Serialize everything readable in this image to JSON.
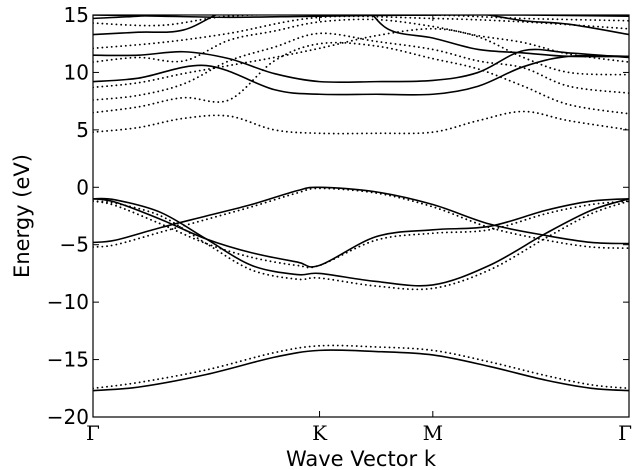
{
  "chart_data": {
    "type": "line",
    "xlabel": "Wave Vector k",
    "ylabel": "Energy (eV)",
    "ylim": [
      -20,
      15
    ],
    "yticks": [
      -20,
      -15,
      -10,
      -5,
      0,
      5,
      10,
      15
    ],
    "x_ticks": [
      {
        "label": "Γ",
        "x": 0
      },
      {
        "label": "K",
        "x": 1
      },
      {
        "label": "M",
        "x": 1.5
      },
      {
        "label": "Γ",
        "x": 2.366
      }
    ],
    "grid": false,
    "series": [
      {
        "style": "solid",
        "x": [
          0,
          0.2,
          0.5,
          0.8,
          1.0,
          1.25,
          1.5,
          1.75,
          2.0,
          2.2,
          2.366
        ],
        "y": [
          -17.7,
          -17.4,
          -16.3,
          -14.8,
          -14.2,
          -14.3,
          -14.6,
          -15.6,
          -16.8,
          -17.5,
          -17.7
        ]
      },
      {
        "style": "dotted",
        "x": [
          0,
          0.2,
          0.5,
          0.8,
          1.0,
          1.25,
          1.5,
          1.75,
          2.0,
          2.2,
          2.366
        ],
        "y": [
          -17.5,
          -17.0,
          -15.9,
          -14.4,
          -13.8,
          -13.9,
          -14.2,
          -15.2,
          -16.4,
          -17.2,
          -17.5
        ]
      },
      {
        "style": "solid",
        "x": [
          0,
          0.1,
          0.3,
          0.5,
          0.7,
          0.9,
          1.0,
          1.25,
          1.5,
          1.75,
          2.0,
          2.2,
          2.366
        ],
        "y": [
          -1.0,
          -1.1,
          -2.2,
          -4.5,
          -6.8,
          -7.6,
          -7.5,
          -8.2,
          -8.5,
          -6.8,
          -4.0,
          -2.0,
          -1.0
        ]
      },
      {
        "style": "solid",
        "x": [
          0,
          0.1,
          0.3,
          0.5,
          0.7,
          0.9,
          1.0,
          1.25,
          1.5,
          1.75,
          2.0,
          2.2,
          2.366
        ],
        "y": [
          -1.0,
          -1.3,
          -2.8,
          -4.5,
          -5.7,
          -6.5,
          -6.8,
          -4.3,
          -3.7,
          -3.4,
          -2.0,
          -1.2,
          -1.0
        ]
      },
      {
        "style": "solid",
        "x": [
          0,
          0.1,
          0.3,
          0.5,
          0.7,
          0.9,
          1.0,
          1.25,
          1.5,
          1.75,
          2.0,
          2.2,
          2.366
        ],
        "y": [
          -4.8,
          -4.6,
          -3.5,
          -2.5,
          -1.5,
          -0.3,
          0.0,
          -0.4,
          -1.5,
          -3.2,
          -4.2,
          -4.8,
          -4.9
        ]
      },
      {
        "style": "dotted",
        "x": [
          0,
          0.1,
          0.3,
          0.5,
          0.7,
          0.9,
          1.0,
          1.25,
          1.5,
          1.75,
          2.0,
          2.2,
          2.366
        ],
        "y": [
          -1.2,
          -1.4,
          -2.5,
          -4.9,
          -7.2,
          -8.0,
          -7.9,
          -8.6,
          -8.8,
          -7.2,
          -4.4,
          -2.3,
          -1.2
        ]
      },
      {
        "style": "dotted",
        "x": [
          0,
          0.1,
          0.3,
          0.5,
          0.7,
          0.9,
          1.0,
          1.25,
          1.5,
          1.75,
          2.0,
          2.2,
          2.366
        ],
        "y": [
          -1.2,
          -1.6,
          -3.2,
          -4.9,
          -6.1,
          -6.8,
          -6.8,
          -4.6,
          -4.0,
          -3.7,
          -2.3,
          -1.5,
          -1.2
        ]
      },
      {
        "style": "dotted",
        "x": [
          0,
          0.1,
          0.3,
          0.5,
          0.7,
          0.9,
          1.0,
          1.25,
          1.5,
          1.75,
          2.0,
          2.2,
          2.366
        ],
        "y": [
          -5.2,
          -5.0,
          -3.9,
          -2.8,
          -1.7,
          -0.5,
          -0.1,
          -0.5,
          -1.7,
          -3.5,
          -4.6,
          -5.2,
          -5.3
        ]
      },
      {
        "style": "solid",
        "x": [
          0,
          0.2,
          0.5,
          0.8,
          1.0,
          1.25,
          1.5,
          1.7,
          1.9,
          2.1,
          2.366
        ],
        "y": [
          9.2,
          9.5,
          10.6,
          8.5,
          8.1,
          8.1,
          8.1,
          8.8,
          10.5,
          11.4,
          11.4
        ]
      },
      {
        "style": "solid",
        "x": [
          0,
          0.2,
          0.4,
          0.6,
          0.8,
          1.0,
          1.25,
          1.5,
          1.7,
          1.9,
          2.1,
          2.366
        ],
        "y": [
          11.5,
          11.5,
          11.8,
          11.2,
          9.9,
          9.2,
          9.2,
          9.3,
          10.0,
          11.9,
          11.7,
          11.3
        ]
      },
      {
        "style": "solid",
        "x": [
          0,
          0.2,
          0.4,
          0.6,
          0.85,
          1.0,
          1.15,
          1.3,
          1.5,
          1.7,
          1.9,
          2.1,
          2.366
        ],
        "y": [
          13.3,
          13.5,
          13.7,
          15.5,
          16.5,
          16.8,
          16.8,
          13.8,
          13.0,
          12.0,
          11.7,
          11.4,
          11.4
        ]
      },
      {
        "style": "solid",
        "x": [
          0,
          0.2,
          0.4,
          0.6,
          0.8,
          1.0,
          1.2,
          1.5,
          1.7,
          1.9,
          2.1,
          2.366
        ],
        "y": [
          14.7,
          14.9,
          15.2,
          15.5,
          15.4,
          15.2,
          15.0,
          15.0,
          15.1,
          14.5,
          14.2,
          13.3
        ]
      },
      {
        "style": "solid",
        "x": [
          0,
          0.3,
          0.6,
          1.0,
          1.5,
          1.9,
          2.366
        ],
        "y": [
          15.0,
          14.9,
          14.8,
          14.9,
          15.0,
          15.0,
          14.9
        ]
      },
      {
        "style": "dotted",
        "x": [
          0,
          0.2,
          0.4,
          0.6,
          0.8,
          1.0,
          1.25,
          1.5,
          1.7,
          1.9,
          2.1,
          2.366
        ],
        "y": [
          4.8,
          5.2,
          6.0,
          6.2,
          5.0,
          4.7,
          4.7,
          4.8,
          5.8,
          6.6,
          5.8,
          5.0
        ]
      },
      {
        "style": "dotted",
        "x": [
          0,
          0.2,
          0.4,
          0.6,
          0.8,
          1.0,
          1.25,
          1.5,
          1.7,
          1.9,
          2.1,
          2.366
        ],
        "y": [
          6.5,
          7.0,
          7.8,
          7.6,
          11.0,
          12.5,
          12.3,
          11.2,
          10.3,
          8.8,
          7.2,
          6.4
        ]
      },
      {
        "style": "dotted",
        "x": [
          0,
          0.2,
          0.4,
          0.6,
          0.8,
          1.0,
          1.25,
          1.5,
          1.7,
          1.9,
          2.1,
          2.366
        ],
        "y": [
          7.6,
          8.0,
          9.0,
          11.0,
          12.2,
          13.4,
          12.7,
          12.0,
          11.0,
          10.4,
          8.8,
          8.2
        ]
      },
      {
        "style": "dotted",
        "x": [
          0,
          0.2,
          0.4,
          0.6,
          0.8,
          1.0,
          1.25,
          1.5,
          1.7,
          1.9,
          2.1,
          2.366
        ],
        "y": [
          8.7,
          9.1,
          9.9,
          10.6,
          11.3,
          12.1,
          13.2,
          13.8,
          13.1,
          11.3,
          10.0,
          9.8
        ]
      },
      {
        "style": "dotted",
        "x": [
          0,
          0.2,
          0.4,
          0.6,
          0.8,
          1.0,
          1.25,
          1.5,
          1.7,
          1.9,
          2.1,
          2.366
        ],
        "y": [
          10.9,
          11.3,
          11.0,
          12.8,
          13.6,
          14.4,
          14.6,
          14.0,
          13.2,
          12.6,
          11.6,
          10.9
        ]
      },
      {
        "style": "dotted",
        "x": [
          0,
          0.3,
          0.6,
          1.0,
          1.5,
          1.9,
          2.366
        ],
        "y": [
          12.1,
          12.6,
          13.4,
          14.8,
          14.7,
          14.4,
          13.8
        ]
      },
      {
        "style": "dotted",
        "x": [
          0,
          0.3,
          0.6,
          1.0,
          1.5,
          1.9,
          2.366
        ],
        "y": [
          14.3,
          14.1,
          14.9,
          15.1,
          15.0,
          14.7,
          14.5
        ]
      }
    ]
  }
}
